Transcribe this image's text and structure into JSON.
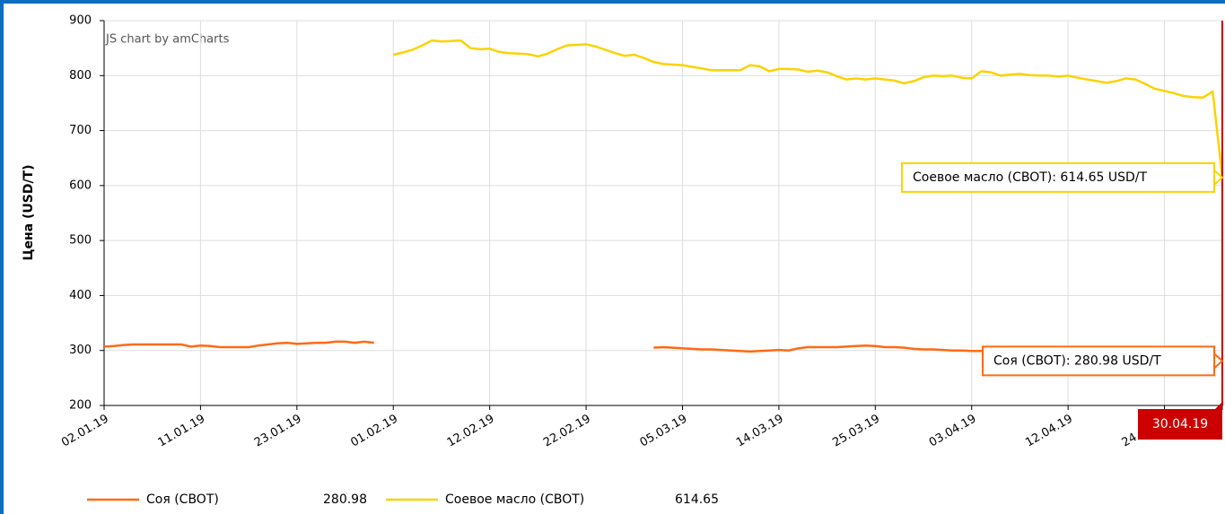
{
  "chart_data": {
    "type": "line",
    "credit": "JS chart by amCharts",
    "y_label": "Цена (USD/T)",
    "categories": [
      "02.01.19",
      null,
      null,
      null,
      null,
      null,
      null,
      null,
      null,
      null,
      "11.01.19",
      null,
      null,
      null,
      null,
      null,
      null,
      null,
      null,
      null,
      "23.01.19",
      null,
      null,
      null,
      null,
      null,
      null,
      null,
      null,
      null,
      "01.02.19",
      null,
      null,
      null,
      null,
      null,
      null,
      null,
      null,
      null,
      "12.02.19",
      null,
      null,
      null,
      null,
      null,
      null,
      null,
      null,
      null,
      "22.02.19",
      null,
      null,
      null,
      null,
      null,
      null,
      null,
      null,
      null,
      "05.03.19",
      null,
      null,
      null,
      null,
      null,
      null,
      null,
      null,
      null,
      "14.03.19",
      null,
      null,
      null,
      null,
      null,
      null,
      null,
      null,
      null,
      "25.03.19",
      null,
      null,
      null,
      null,
      null,
      null,
      null,
      null,
      null,
      "03.04.19",
      null,
      null,
      null,
      null,
      null,
      null,
      null,
      null,
      null,
      "12.04.19",
      null,
      null,
      null,
      null,
      null,
      null,
      null,
      null,
      null,
      "24.04.19",
      null,
      null,
      null,
      null,
      null,
      "30.04.19"
    ],
    "series": [
      {
        "name": "Соя (CBOT)",
        "color": "#ff6a13",
        "values": [
          307,
          308,
          310,
          311,
          311,
          311,
          311,
          311,
          311,
          307,
          309,
          308,
          306,
          306,
          306,
          306,
          309,
          311,
          313,
          314,
          312,
          313,
          314,
          314,
          316,
          316,
          314,
          316,
          314,
          null,
          null,
          null,
          null,
          null,
          null,
          null,
          null,
          null,
          null,
          null,
          null,
          null,
          null,
          null,
          null,
          null,
          null,
          null,
          null,
          null,
          null,
          null,
          null,
          null,
          null,
          null,
          null,
          305,
          306,
          305,
          304,
          303,
          302,
          302,
          301,
          300,
          299,
          298,
          299,
          300,
          301,
          300,
          304,
          306,
          306,
          306,
          306,
          307,
          308,
          309,
          308,
          306,
          306,
          305,
          303,
          302,
          302,
          301,
          300,
          300,
          299,
          299,
          299,
          299,
          299,
          299,
          299,
          299,
          299,
          299,
          299,
          299,
          298,
          298,
          298,
          298,
          298,
          298,
          298,
          298,
          298,
          298,
          298,
          298,
          297,
          296,
          280.98
        ]
      },
      {
        "name": "Соевое масло (CBOT)",
        "color": "#fcd202",
        "values": [
          null,
          null,
          null,
          null,
          null,
          null,
          null,
          null,
          null,
          null,
          null,
          null,
          null,
          null,
          null,
          null,
          null,
          null,
          null,
          null,
          null,
          null,
          null,
          null,
          null,
          null,
          null,
          null,
          null,
          null,
          838,
          842,
          847,
          855,
          864,
          862,
          863,
          864,
          850,
          848,
          849,
          843,
          841,
          840,
          839,
          835,
          840,
          848,
          855,
          856,
          857,
          853,
          847,
          841,
          836,
          838,
          832,
          825,
          821,
          820,
          819,
          816,
          813,
          810,
          810,
          810,
          810,
          819,
          817,
          808,
          812,
          812,
          811,
          807,
          809,
          806,
          799,
          793,
          795,
          793,
          795,
          793,
          791,
          786,
          790,
          797,
          800,
          799,
          800,
          796,
          795,
          808,
          806,
          800,
          802,
          803,
          801,
          800,
          800,
          798,
          800,
          796,
          793,
          790,
          787,
          790,
          795,
          793,
          785,
          776,
          772,
          768,
          763,
          761,
          760,
          771,
          614.65
        ]
      }
    ],
    "balloons": [
      "Соевое масло (CBOT): 614.65 USD/T",
      "Соя (CBOT): 280.98 USD/T"
    ],
    "ylim": [
      200,
      900
    ],
    "yticks": [
      200,
      300,
      400,
      500,
      600,
      700,
      800,
      900
    ],
    "grid": true
  }
}
